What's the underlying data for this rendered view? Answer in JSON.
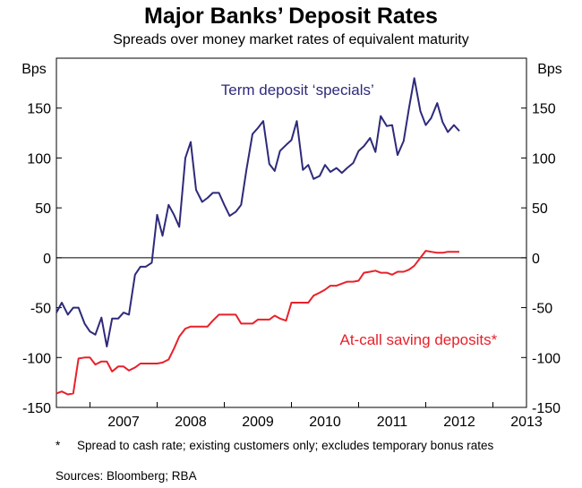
{
  "chart_data": {
    "type": "line",
    "title": "Major Banks’ Deposit Rates",
    "subtitle": "Spreads over money market rates of equivalent maturity",
    "unit_left": "Bps",
    "unit_right": "Bps",
    "ylim": [
      -150,
      200
    ],
    "yticks": [
      150,
      100,
      50,
      0,
      -50,
      -100,
      -150
    ],
    "xlim": [
      2006.5,
      2013.5
    ],
    "xtick_labels": [
      "2007",
      "2008",
      "2009",
      "2010",
      "2011",
      "2012",
      "2013"
    ],
    "grid": false,
    "series": [
      {
        "name": "Term deposit ‘specials’",
        "color": "#2e2a7a",
        "x": [
          2006.5,
          2006.58,
          2006.67,
          2006.75,
          2006.83,
          2006.92,
          2007.0,
          2007.08,
          2007.17,
          2007.25,
          2007.33,
          2007.42,
          2007.5,
          2007.58,
          2007.67,
          2007.75,
          2007.83,
          2007.92,
          2008.0,
          2008.08,
          2008.17,
          2008.25,
          2008.33,
          2008.42,
          2008.5,
          2008.58,
          2008.67,
          2008.75,
          2008.83,
          2008.92,
          2009.0,
          2009.08,
          2009.17,
          2009.25,
          2009.33,
          2009.42,
          2009.5,
          2009.58,
          2009.67,
          2009.75,
          2009.83,
          2009.92,
          2010.0,
          2010.08,
          2010.17,
          2010.25,
          2010.33,
          2010.42,
          2010.5,
          2010.58,
          2010.67,
          2010.75,
          2010.83,
          2010.92,
          2011.0,
          2011.08,
          2011.17,
          2011.25,
          2011.33,
          2011.42,
          2011.5,
          2011.58,
          2011.67,
          2011.75,
          2011.83,
          2011.92,
          2012.0,
          2012.08,
          2012.17,
          2012.25,
          2012.33,
          2012.42,
          2012.5,
          2012.58
        ],
        "values": [
          -55,
          -45,
          -57,
          -50,
          -50,
          -66,
          -74,
          -77,
          -60,
          -89,
          -61,
          -61,
          -55,
          -57,
          -17,
          -9,
          -9,
          -5,
          43,
          22,
          53,
          43,
          31,
          100,
          116,
          68,
          56,
          60,
          65,
          65,
          53,
          42,
          46,
          53,
          88,
          124,
          130,
          137,
          94,
          87,
          107,
          113,
          118,
          137,
          88,
          93,
          79,
          82,
          93,
          86,
          90,
          85,
          90,
          95,
          107,
          112,
          120,
          106,
          142,
          132,
          133,
          103,
          117,
          150,
          180,
          147,
          133,
          140,
          155,
          136,
          126,
          133,
          127,
          null
        ],
        "label_pos_x": 2008.95,
        "label_pos_y": 163
      },
      {
        "name": "At-call saving deposits*",
        "color": "#e8202a",
        "x": [
          2006.5,
          2006.58,
          2006.67,
          2006.75,
          2006.83,
          2006.92,
          2007.0,
          2007.08,
          2007.17,
          2007.25,
          2007.33,
          2007.42,
          2007.5,
          2007.58,
          2007.67,
          2007.75,
          2007.83,
          2007.92,
          2008.0,
          2008.08,
          2008.17,
          2008.25,
          2008.33,
          2008.42,
          2008.5,
          2008.58,
          2008.67,
          2008.75,
          2008.83,
          2008.92,
          2009.0,
          2009.08,
          2009.17,
          2009.25,
          2009.33,
          2009.42,
          2009.5,
          2009.58,
          2009.67,
          2009.75,
          2009.83,
          2009.92,
          2010.0,
          2010.08,
          2010.17,
          2010.25,
          2010.33,
          2010.42,
          2010.5,
          2010.58,
          2010.67,
          2010.75,
          2010.83,
          2010.92,
          2011.0,
          2011.08,
          2011.17,
          2011.25,
          2011.33,
          2011.42,
          2011.5,
          2011.58,
          2011.67,
          2011.75,
          2011.83,
          2011.92,
          2012.0,
          2012.08,
          2012.17,
          2012.25,
          2012.33,
          2012.42,
          2012.5
        ],
        "values": [
          -136,
          -134,
          -137,
          -136,
          -101,
          -100,
          -100,
          -107,
          -104,
          -104,
          -114,
          -109,
          -109,
          -113,
          -110,
          -106,
          -106,
          -106,
          -106,
          -105,
          -102,
          -91,
          -79,
          -71,
          -69,
          -69,
          -69,
          -69,
          -63,
          -57,
          -57,
          -57,
          -57,
          -66,
          -66,
          -66,
          -62,
          -62,
          -62,
          -58,
          -61,
          -63,
          -45,
          -45,
          -45,
          -45,
          -38,
          -35,
          -32,
          -28,
          -28,
          -26,
          -24,
          -24,
          -23,
          -15,
          -14,
          -13,
          -15,
          -15,
          -17,
          -14,
          -14,
          -12,
          -8,
          0,
          7,
          6,
          5,
          5,
          6,
          6,
          6
        ],
        "label_pos_x": 2010.72,
        "label_pos_y": -87
      }
    ]
  },
  "footnote": {
    "mark": "*",
    "text": "Spread to cash rate; existing customers only; excludes temporary bonus rates"
  },
  "sources": "Sources: Bloomberg; RBA"
}
